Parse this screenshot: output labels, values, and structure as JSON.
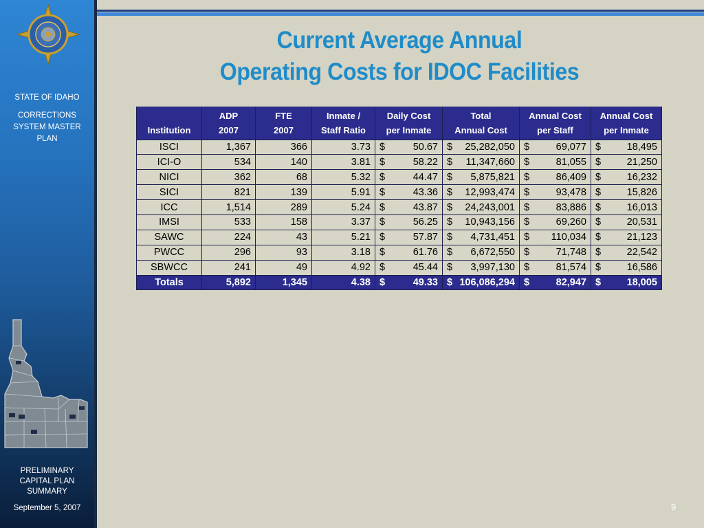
{
  "sidebar": {
    "state_line": "STATE OF IDAHO",
    "plan_lines": [
      "CORRECTIONS",
      "SYSTEM MASTER",
      "PLAN"
    ],
    "summary_lines": [
      "PRELIMINARY",
      "CAPITAL PLAN",
      "SUMMARY"
    ],
    "date": "September 5, 2007"
  },
  "title": {
    "line1": "Current Average Annual",
    "line2": "Operating Costs for IDOC Facilities"
  },
  "table": {
    "headers": [
      {
        "top": "",
        "bottom": "Institution"
      },
      {
        "top": "ADP",
        "bottom": "2007"
      },
      {
        "top": "FTE",
        "bottom": "2007"
      },
      {
        "top": "Inmate /",
        "bottom": "Staff Ratio"
      },
      {
        "top": "Daily Cost",
        "bottom": "per Inmate"
      },
      {
        "top": "Total",
        "bottom": "Annual Cost"
      },
      {
        "top": "Annual Cost",
        "bottom": "per Staff"
      },
      {
        "top": "Annual Cost",
        "bottom": "per Inmate"
      }
    ],
    "rows": [
      {
        "institution": "ISCI",
        "adp": "1,367",
        "fte": "366",
        "ratio": "3.73",
        "daily": "50.67",
        "total": "25,282,050",
        "per_staff": "69,077",
        "per_inmate": "18,495"
      },
      {
        "institution": "ICI-O",
        "adp": "534",
        "fte": "140",
        "ratio": "3.81",
        "daily": "58.22",
        "total": "11,347,660",
        "per_staff": "81,055",
        "per_inmate": "21,250"
      },
      {
        "institution": "NICI",
        "adp": "362",
        "fte": "68",
        "ratio": "5.32",
        "daily": "44.47",
        "total": "5,875,821",
        "per_staff": "86,409",
        "per_inmate": "16,232"
      },
      {
        "institution": "SICI",
        "adp": "821",
        "fte": "139",
        "ratio": "5.91",
        "daily": "43.36",
        "total": "12,993,474",
        "per_staff": "93,478",
        "per_inmate": "15,826"
      },
      {
        "institution": "ICC",
        "adp": "1,514",
        "fte": "289",
        "ratio": "5.24",
        "daily": "43.87",
        "total": "24,243,001",
        "per_staff": "83,886",
        "per_inmate": "16,013"
      },
      {
        "institution": "IMSI",
        "adp": "533",
        "fte": "158",
        "ratio": "3.37",
        "daily": "56.25",
        "total": "10,943,156",
        "per_staff": "69,260",
        "per_inmate": "20,531"
      },
      {
        "institution": "SAWC",
        "adp": "224",
        "fte": "43",
        "ratio": "5.21",
        "daily": "57.87",
        "total": "4,731,451",
        "per_staff": "110,034",
        "per_inmate": "21,123"
      },
      {
        "institution": "PWCC",
        "adp": "296",
        "fte": "93",
        "ratio": "3.18",
        "daily": "61.76",
        "total": "6,672,550",
        "per_staff": "71,748",
        "per_inmate": "22,542"
      },
      {
        "institution": "SBWCC",
        "adp": "241",
        "fte": "49",
        "ratio": "4.92",
        "daily": "45.44",
        "total": "3,997,130",
        "per_staff": "81,574",
        "per_inmate": "16,586"
      }
    ],
    "totals": {
      "institution": "Totals",
      "adp": "5,892",
      "fte": "1,345",
      "ratio": "4.38",
      "daily": "49.33",
      "total": "106,086,294",
      "per_staff": "82,947",
      "per_inmate": "18,005"
    },
    "currency_symbol": "$"
  },
  "page_number": "9",
  "colors": {
    "title": "#1f8cc9",
    "header_bg": "#2b2c8d",
    "body_bg": "#d5d3c4",
    "sidebar_top": "#2f86d4",
    "sidebar_bottom": "#0a1e3a"
  }
}
